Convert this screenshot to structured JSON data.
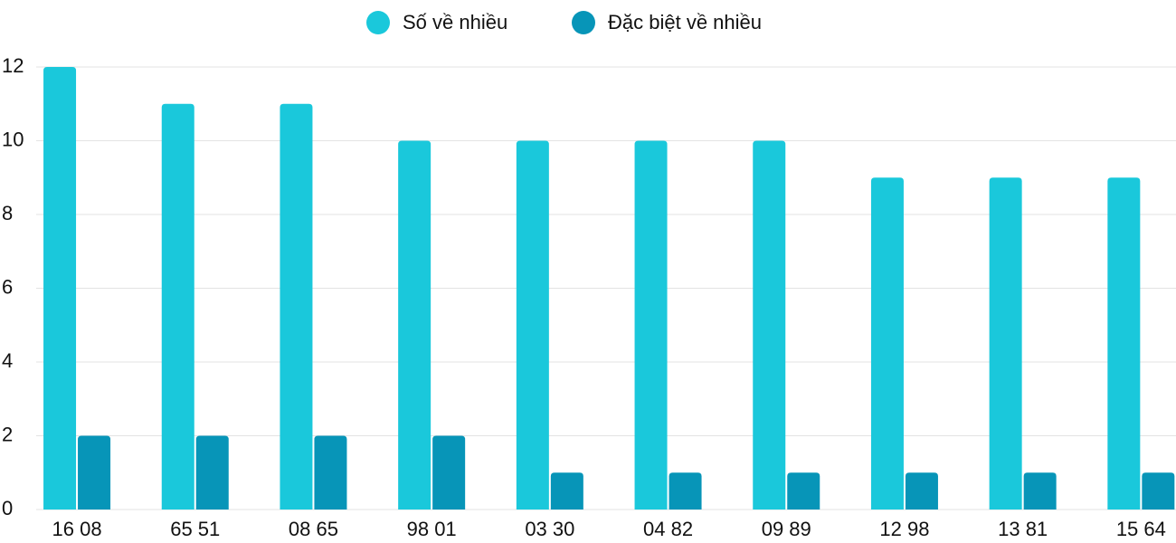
{
  "chart_data": {
    "type": "bar",
    "categories": [
      "16 08",
      "65 51",
      "08 65",
      "98 01",
      "03 30",
      "04 82",
      "09 89",
      "12 98",
      "13 81",
      "15 64"
    ],
    "series": [
      {
        "name": "Số về nhiều",
        "color": "#1ac8db",
        "values": [
          12,
          11,
          11,
          10,
          10,
          10,
          10,
          9,
          9,
          9
        ]
      },
      {
        "name": "Đặc biệt về nhiều",
        "color": "#0795b8",
        "values": [
          2,
          2,
          2,
          2,
          1,
          1,
          1,
          1,
          1,
          1
        ]
      }
    ],
    "ylim": [
      0,
      12
    ],
    "yticks": [
      0,
      2,
      4,
      6,
      8,
      10,
      12
    ],
    "grid": true,
    "legend": "top"
  }
}
